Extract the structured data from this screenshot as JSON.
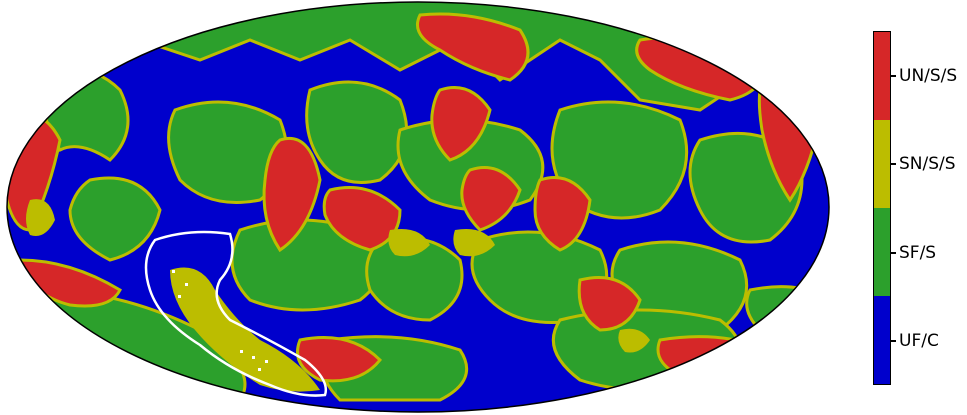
{
  "legend": {
    "categories": [
      {
        "label": "UN/S/S",
        "color": "#d62728"
      },
      {
        "label": "SN/S/S",
        "color": "#bcbd00"
      },
      {
        "label": "SF/S",
        "color": "#2ca02c"
      },
      {
        "label": "UF/C",
        "color": "#0000cc"
      }
    ]
  },
  "map": {
    "projection": "mollweide",
    "background_color": "#0000cc",
    "outline_color": "#000000",
    "highlight_outline_color": "#ffffff"
  }
}
